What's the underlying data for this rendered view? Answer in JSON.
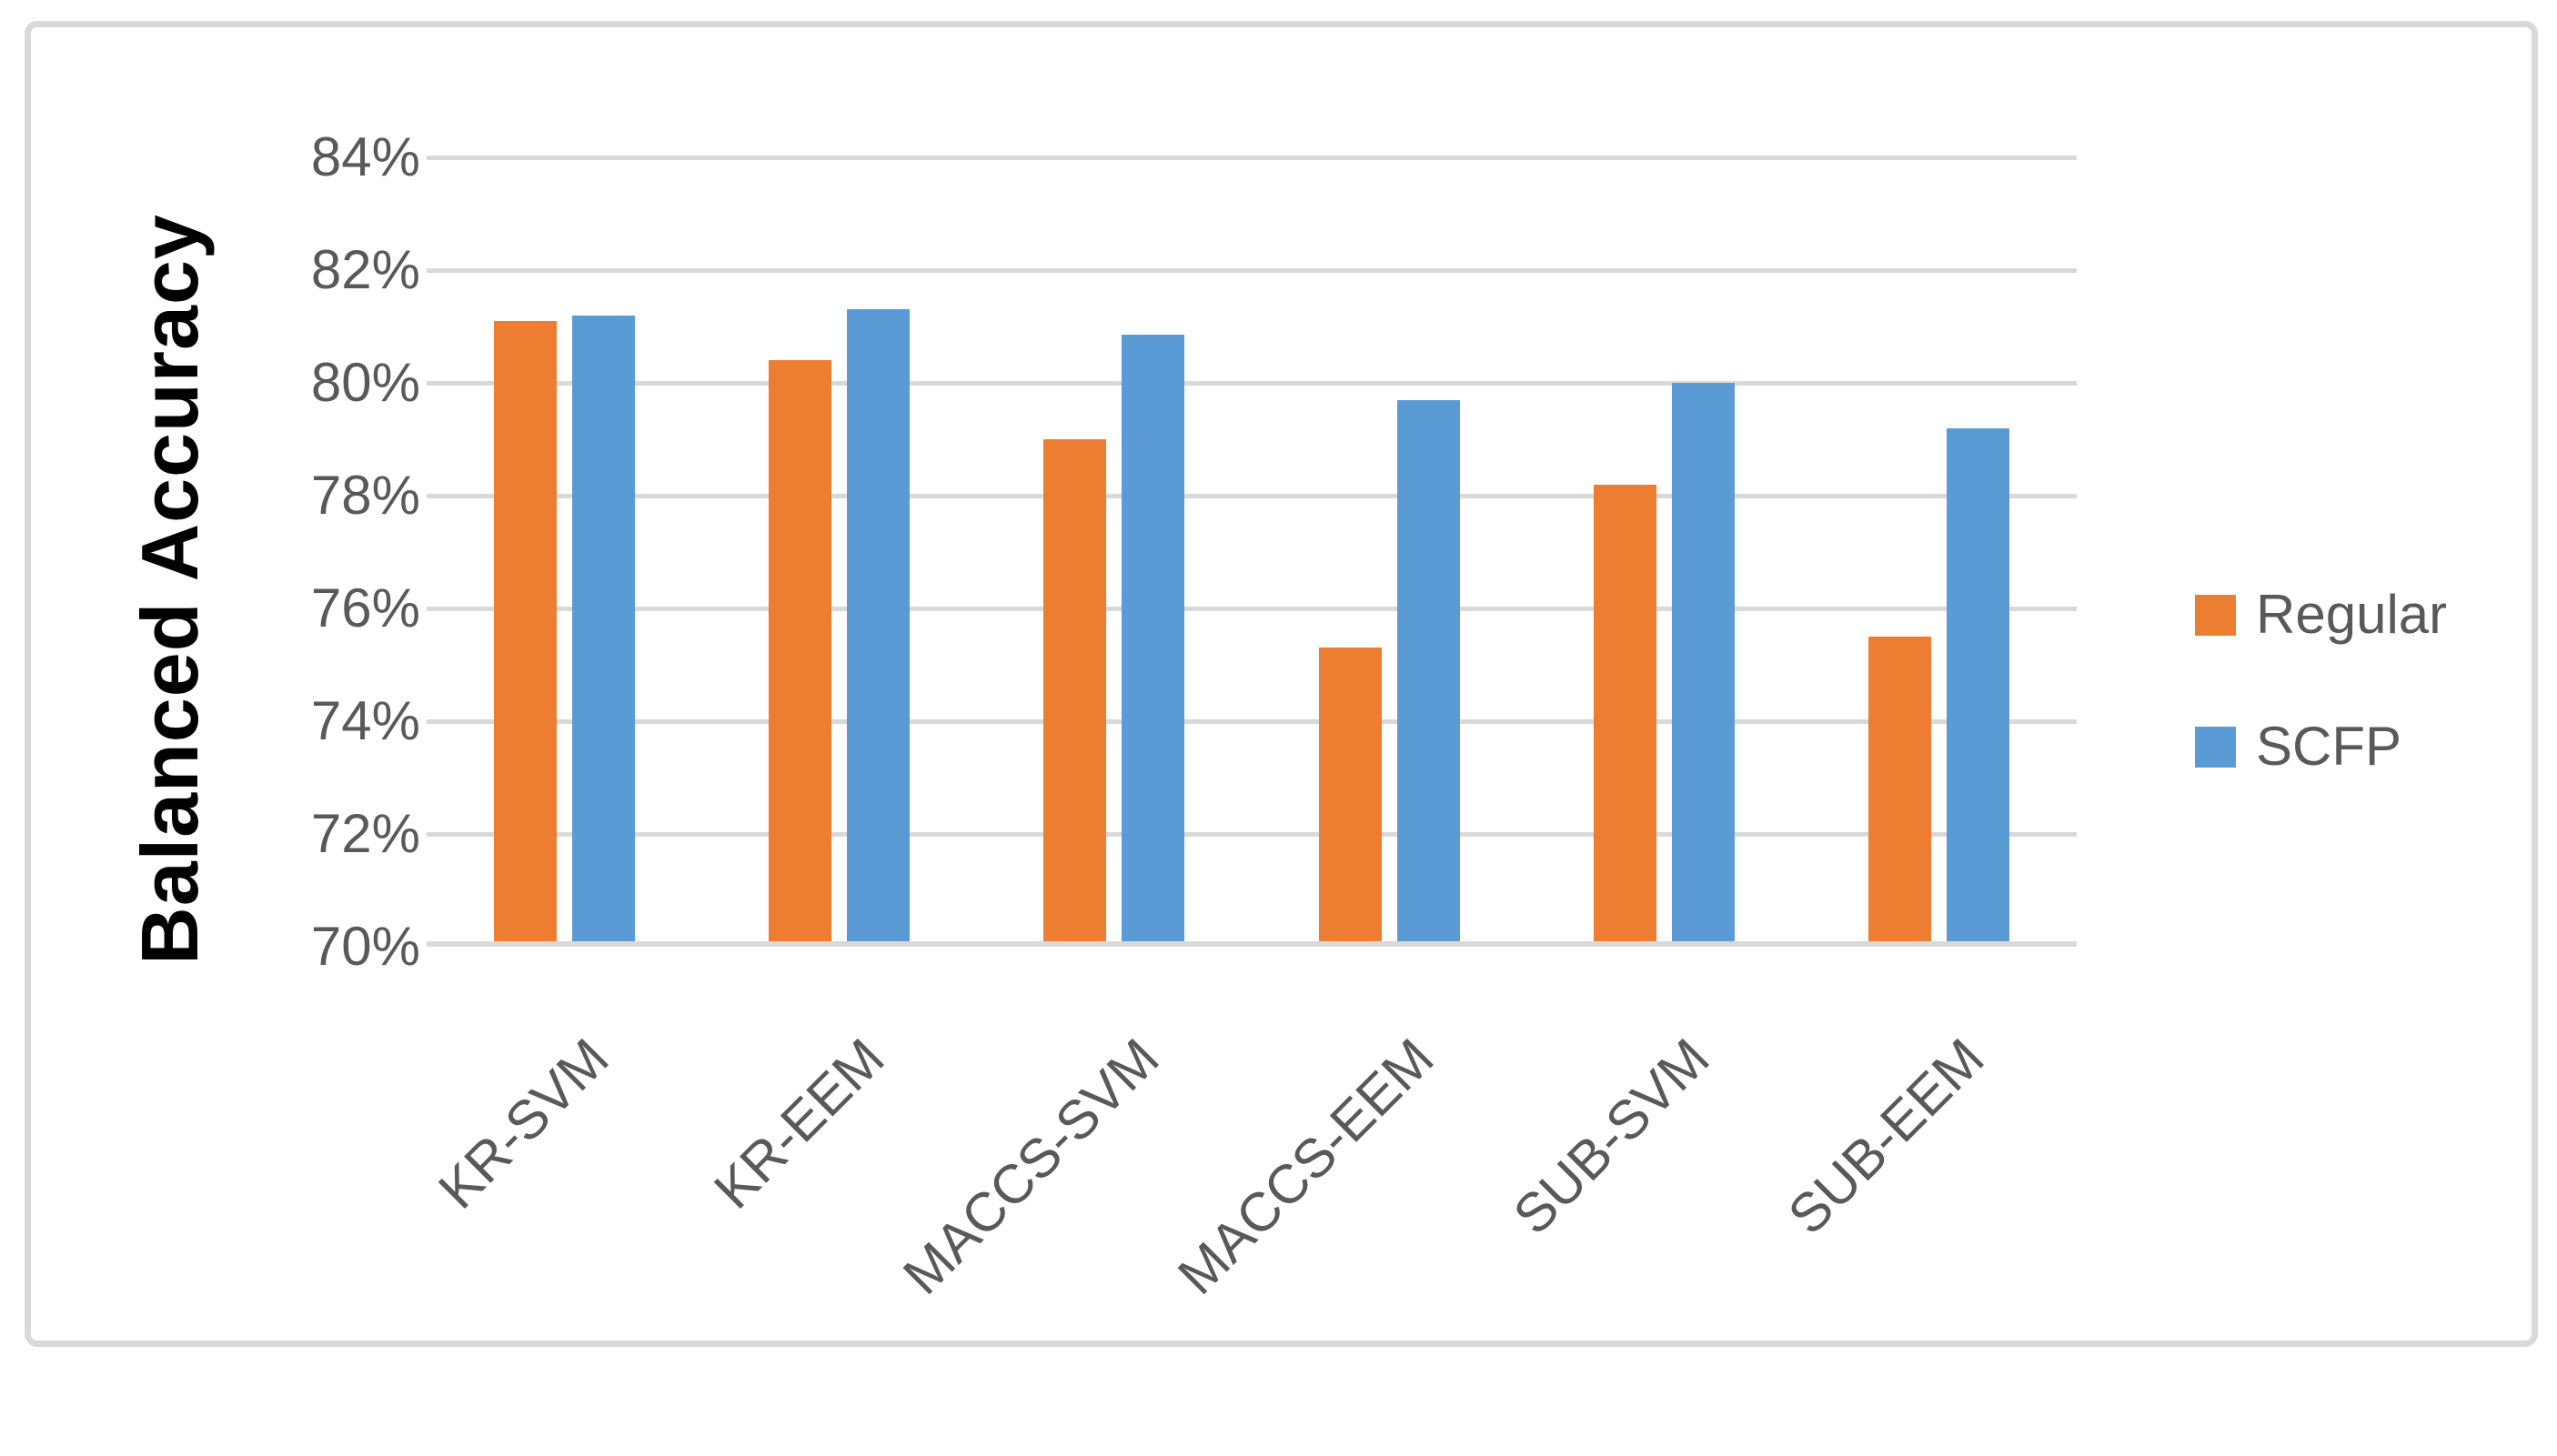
{
  "figure": {
    "background_color": "#FFFFFF",
    "border_color": "#D9D9D9"
  },
  "chart_data": {
    "type": "bar",
    "title": "",
    "categories": [
      "KR-SVM",
      "KR-EEM",
      "MACCS-SVM",
      "MACCS-EEM",
      "SUB-SVM",
      "SUB-EEM"
    ],
    "series": [
      {
        "name": "Regular",
        "color": "#ED7D31",
        "values": [
          81.1,
          80.4,
          79.0,
          75.3,
          78.2,
          75.5
        ]
      },
      {
        "name": "SCFP",
        "color": "#5B9BD5",
        "values": [
          81.2,
          81.3,
          80.85,
          79.7,
          80.0,
          79.2
        ]
      }
    ],
    "xlabel": "",
    "ylabel": "Balanced Accuracy",
    "ylim": [
      70,
      84
    ],
    "ytick_step": 2,
    "ytick_labels": [
      "70%",
      "72%",
      "74%",
      "76%",
      "78%",
      "80%",
      "82%",
      "84%"
    ],
    "grid": "horizontal",
    "gridline_color": "#D9D9D9",
    "axis_line_color": "#D9D9D9",
    "tick_label_color": "#595959",
    "axis_title_color": "#000000",
    "legend_position": "right",
    "legend_entries": [
      {
        "label": "Regular",
        "color": "#ED7D31"
      },
      {
        "label": "SCFP",
        "color": "#5B9BD5"
      }
    ]
  }
}
